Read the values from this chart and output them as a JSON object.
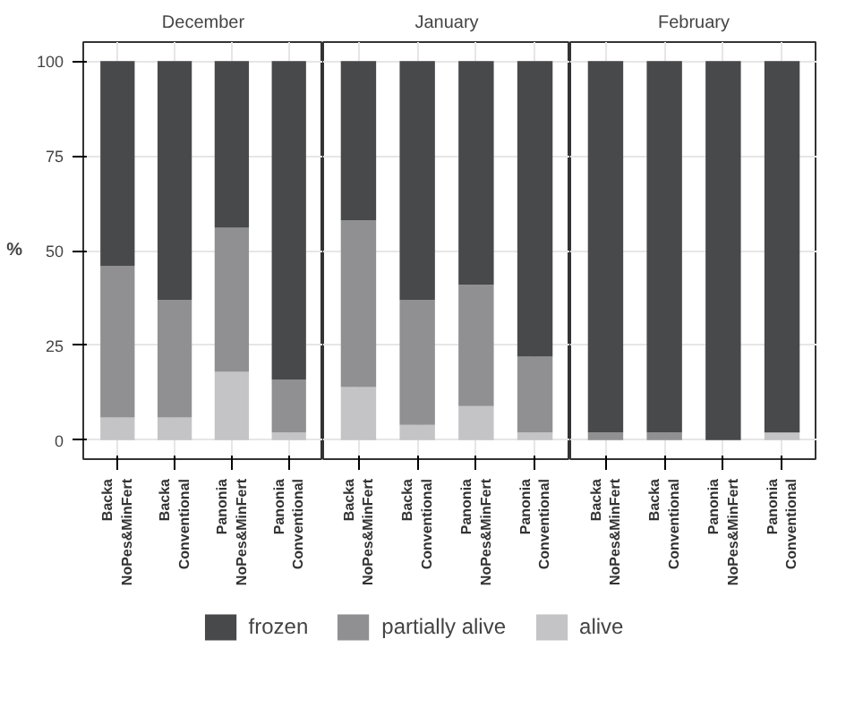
{
  "chart_data": [
    {
      "type": "bar",
      "title": "December",
      "ylabel": "%",
      "stacked": true,
      "grid": true,
      "legend": "bottom",
      "ylim": [
        -5,
        105
      ],
      "yticks": [
        0,
        25,
        50,
        75,
        100
      ],
      "categories": [
        "Backa\nNoPes&MinFert",
        "Backa\nConventional",
        "Panonia\nNoPes&MinFert",
        "Panonia\nConventional"
      ],
      "series": [
        {
          "name": "alive",
          "color": "#c4c4c6",
          "values": [
            6,
            6,
            18,
            2
          ]
        },
        {
          "name": "partially alive",
          "color": "#909093",
          "values": [
            40,
            31,
            38,
            14
          ]
        },
        {
          "name": "frozen",
          "color": "#48494b",
          "values": [
            54,
            63,
            44,
            84
          ]
        }
      ]
    },
    {
      "type": "bar",
      "title": "January",
      "stacked": true,
      "grid": true,
      "tick_labels": "x",
      "ylim": [
        -5,
        105
      ],
      "yticks": [
        0,
        25,
        50,
        75,
        100
      ],
      "categories": [
        "Backa\nNoPes&MinFert",
        "Backa\nConventional",
        "Panonia\nNoPes&MinFert",
        "Panonia\nConventional"
      ],
      "series": [
        {
          "color": "#c4c4c6",
          "values": [
            14,
            4,
            9,
            2
          ]
        },
        {
          "color": "#909093",
          "values": [
            44,
            33,
            32,
            20
          ]
        },
        {
          "color": "#48494b",
          "values": [
            42,
            63,
            59,
            78
          ]
        }
      ]
    },
    {
      "type": "bar",
      "title": "February",
      "stacked": true,
      "grid": true,
      "tick_labels": "x",
      "ylim": [
        -5,
        105
      ],
      "yticks": [
        0,
        25,
        50,
        75,
        100
      ],
      "categories": [
        "Backa\nNoPes&MinFert",
        "Backa\nConventional",
        "Panonia\nNoPes&MinFert",
        "Panonia\nConventional"
      ],
      "series": [
        {
          "color": "#c4c4c6",
          "values": [
            0,
            0,
            0,
            2
          ]
        },
        {
          "color": "#909093",
          "values": [
            2,
            2,
            0,
            0
          ]
        },
        {
          "color": "#48494b",
          "values": [
            98,
            98,
            100,
            98
          ]
        }
      ]
    }
  ]
}
